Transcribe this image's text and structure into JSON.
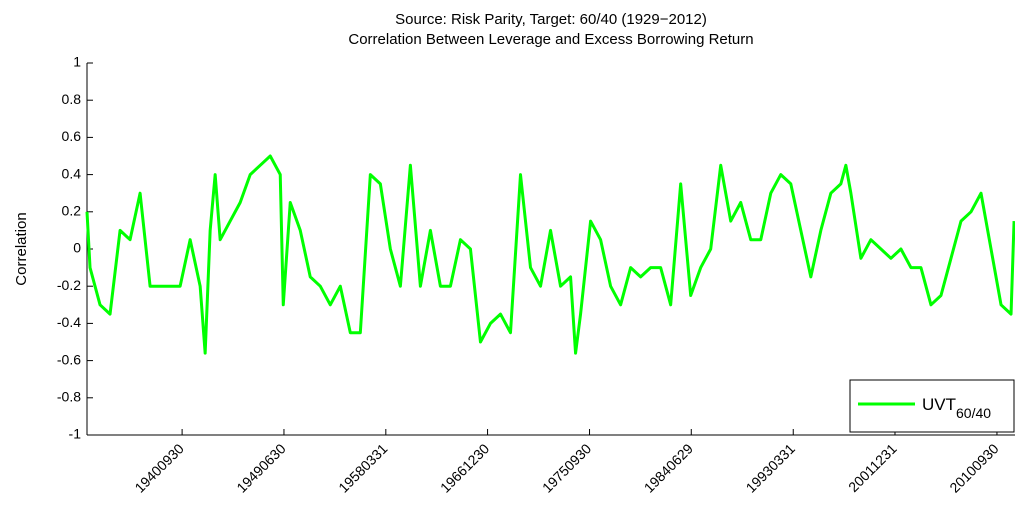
{
  "chart_data": {
    "type": "line",
    "title": "Source: Risk Parity, Target: 60/40 (1929−2012)",
    "subtitle": "Correlation Between Leverage and Excess Borrowing Return",
    "y_label": "Correlation",
    "x": [
      1932.58,
      1932.84,
      1933.7,
      1934.56,
      1935.42,
      1936.28,
      1937.14,
      1938.0,
      1938.86,
      1939.72,
      1940.58,
      1941.44,
      1942.3,
      1942.73,
      1943.16,
      1943.59,
      1944.02,
      1944.88,
      1945.74,
      1946.6,
      1947.46,
      1948.32,
      1949.18,
      1949.44,
      1950.04,
      1950.9,
      1951.76,
      1952.62,
      1953.48,
      1954.34,
      1955.2,
      1956.06,
      1956.92,
      1957.78,
      1958.64,
      1959.5,
      1960.36,
      1961.22,
      1962.08,
      1962.94,
      1963.8,
      1964.66,
      1965.52,
      1966.38,
      1967.24,
      1968.1,
      1968.96,
      1969.82,
      1970.68,
      1971.54,
      1972.4,
      1973.26,
      1974.12,
      1974.55,
      1974.98,
      1975.84,
      1976.7,
      1977.56,
      1978.42,
      1979.28,
      1980.14,
      1981.0,
      1981.86,
      1982.72,
      1983.58,
      1984.44,
      1985.3,
      1986.16,
      1987.02,
      1987.88,
      1988.74,
      1989.6,
      1990.46,
      1991.32,
      1992.18,
      1993.04,
      1993.9,
      1994.76,
      1995.62,
      1996.48,
      1997.34,
      1997.77,
      1998.2,
      1999.06,
      1999.92,
      2000.78,
      2001.64,
      2002.5,
      2003.36,
      2004.22,
      2005.08,
      2005.94,
      2006.8,
      2007.66,
      2008.52,
      2009.38,
      2010.24,
      2011.1,
      2011.96,
      2012.22
    ],
    "series": [
      {
        "name": "UVT",
        "name_subscript": "60/40",
        "color": "#00ff00",
        "values": [
          0.2,
          -0.1,
          -0.3,
          -0.35,
          0.1,
          0.05,
          0.3,
          -0.2,
          -0.2,
          -0.2,
          -0.2,
          0.05,
          -0.2,
          -0.56,
          0.1,
          0.4,
          0.05,
          0.15,
          0.25,
          0.4,
          0.45,
          0.5,
          0.4,
          -0.3,
          0.25,
          0.1,
          -0.15,
          -0.2,
          -0.3,
          -0.2,
          -0.45,
          -0.45,
          0.4,
          0.35,
          0.0,
          -0.2,
          0.45,
          -0.2,
          0.1,
          -0.2,
          -0.2,
          0.05,
          0.0,
          -0.5,
          -0.4,
          -0.35,
          -0.45,
          0.4,
          -0.1,
          -0.2,
          0.1,
          -0.2,
          -0.15,
          -0.56,
          -0.35,
          0.15,
          0.05,
          -0.2,
          -0.3,
          -0.1,
          -0.15,
          -0.1,
          -0.1,
          -0.3,
          0.35,
          -0.25,
          -0.1,
          0.0,
          0.45,
          0.15,
          0.25,
          0.05,
          0.05,
          0.3,
          0.4,
          0.35,
          0.1,
          -0.15,
          0.1,
          0.3,
          0.35,
          0.45,
          0.3,
          -0.05,
          0.05,
          0.0,
          -0.05,
          0.0,
          -0.1,
          -0.1,
          -0.3,
          -0.25,
          -0.05,
          0.15,
          0.2,
          0.3,
          0.0,
          -0.3,
          -0.35,
          0.15
        ]
      }
    ],
    "xlim": [
      1932.58,
      2012.3
    ],
    "xticks": [
      {
        "value": 1940.75,
        "label": "19400930"
      },
      {
        "value": 1949.5,
        "label": "19490630"
      },
      {
        "value": 1958.25,
        "label": "19580331"
      },
      {
        "value": 1966.99,
        "label": "19661230"
      },
      {
        "value": 1975.75,
        "label": "19750930"
      },
      {
        "value": 1984.49,
        "label": "19840629"
      },
      {
        "value": 1993.25,
        "label": "19930331"
      },
      {
        "value": 2001.99,
        "label": "20011231"
      },
      {
        "value": 2010.75,
        "label": "20100930"
      }
    ],
    "ylim": [
      -1,
      1
    ],
    "yticks": [
      -1,
      -0.8,
      -0.6,
      -0.4,
      -0.2,
      0,
      0.2,
      0.4,
      0.6,
      0.8,
      1
    ],
    "grid": false,
    "legend": "lower right"
  }
}
